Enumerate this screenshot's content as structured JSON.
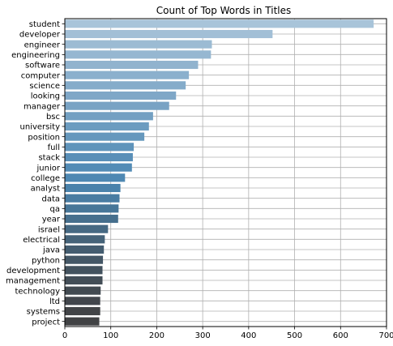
{
  "chart_data": {
    "type": "bar",
    "orientation": "horizontal",
    "title": "Count of Top Words in Titles",
    "xlabel": "",
    "ylabel": "",
    "xlim": [
      0,
      700
    ],
    "xticks": [
      0,
      100,
      200,
      300,
      400,
      500,
      600,
      700
    ],
    "grid": true,
    "palette": "blue_d",
    "categories": [
      "student",
      "developer",
      "engineer",
      "engineering",
      "software",
      "computer",
      "science",
      "looking",
      "manager",
      "bsc",
      "university",
      "position",
      "full",
      "stack",
      "junior",
      "college",
      "analyst",
      "data",
      "qa",
      "year",
      "israel",
      "electrical",
      "java",
      "python",
      "development",
      "management",
      "technology",
      "ltd",
      "systems",
      "project"
    ],
    "values": [
      672,
      452,
      320,
      318,
      290,
      270,
      263,
      242,
      227,
      192,
      183,
      173,
      150,
      148,
      146,
      131,
      121,
      119,
      117,
      116,
      94,
      87,
      85,
      83,
      82,
      82,
      78,
      77,
      77,
      75
    ],
    "colors": [
      "#a8c4d9",
      "#a2bfd6",
      "#9cbbd3",
      "#96b7d1",
      "#91b3ce",
      "#8bb0cd",
      "#85acca",
      "#7fa7c7",
      "#79a3c4",
      "#73a0c2",
      "#6c9cc0",
      "#6698bd",
      "#5f94bb",
      "#598fb8",
      "#538cb6",
      "#4e88b3",
      "#4a82ab",
      "#497ca2",
      "#477698",
      "#466f8d",
      "#466983",
      "#456379",
      "#445d70",
      "#445766",
      "#43525e",
      "#434e57",
      "#424a51",
      "#42464c",
      "#424447",
      "#414244"
    ]
  }
}
